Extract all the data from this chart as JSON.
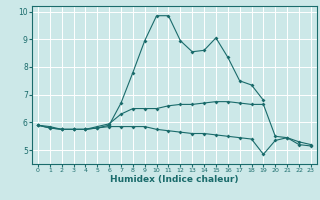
{
  "xlabel": "Humidex (Indice chaleur)",
  "background_color": "#cce8e8",
  "grid_color": "#ffffff",
  "line_color": "#1a6b6b",
  "x": [
    0,
    1,
    2,
    3,
    4,
    5,
    6,
    7,
    8,
    9,
    10,
    11,
    12,
    13,
    14,
    15,
    16,
    17,
    18,
    19,
    20,
    21,
    22,
    23
  ],
  "line1_y": [
    5.9,
    5.8,
    5.75,
    5.75,
    5.75,
    5.8,
    5.9,
    6.7,
    7.8,
    8.95,
    9.85,
    9.85,
    8.95,
    8.55,
    8.6,
    9.05,
    8.35,
    7.5,
    7.35,
    6.8,
    null,
    null,
    null,
    null
  ],
  "line2_y": [
    5.9,
    5.85,
    5.75,
    5.75,
    5.75,
    5.85,
    5.95,
    6.3,
    6.5,
    6.5,
    6.5,
    6.6,
    6.65,
    6.65,
    6.7,
    6.75,
    6.75,
    6.7,
    6.65,
    6.65,
    5.5,
    5.45,
    5.3,
    5.2
  ],
  "line3_y": [
    5.9,
    5.8,
    5.75,
    5.75,
    5.75,
    5.8,
    5.85,
    5.85,
    5.85,
    5.85,
    5.75,
    5.7,
    5.65,
    5.6,
    5.6,
    5.55,
    5.5,
    5.45,
    5.4,
    4.85,
    5.35,
    5.45,
    5.2,
    5.15
  ],
  "ylim": [
    4.5,
    10.2
  ],
  "xlim": [
    -0.5,
    23.5
  ],
  "yticks": [
    5,
    6,
    7,
    8,
    9,
    10
  ],
  "xticks": [
    0,
    1,
    2,
    3,
    4,
    5,
    6,
    7,
    8,
    9,
    10,
    11,
    12,
    13,
    14,
    15,
    16,
    17,
    18,
    19,
    20,
    21,
    22,
    23
  ],
  "marker": "D",
  "markersize": 2.0,
  "linewidth": 0.8,
  "xtick_fontsize": 4.5,
  "ytick_fontsize": 5.5,
  "xlabel_fontsize": 6.5
}
